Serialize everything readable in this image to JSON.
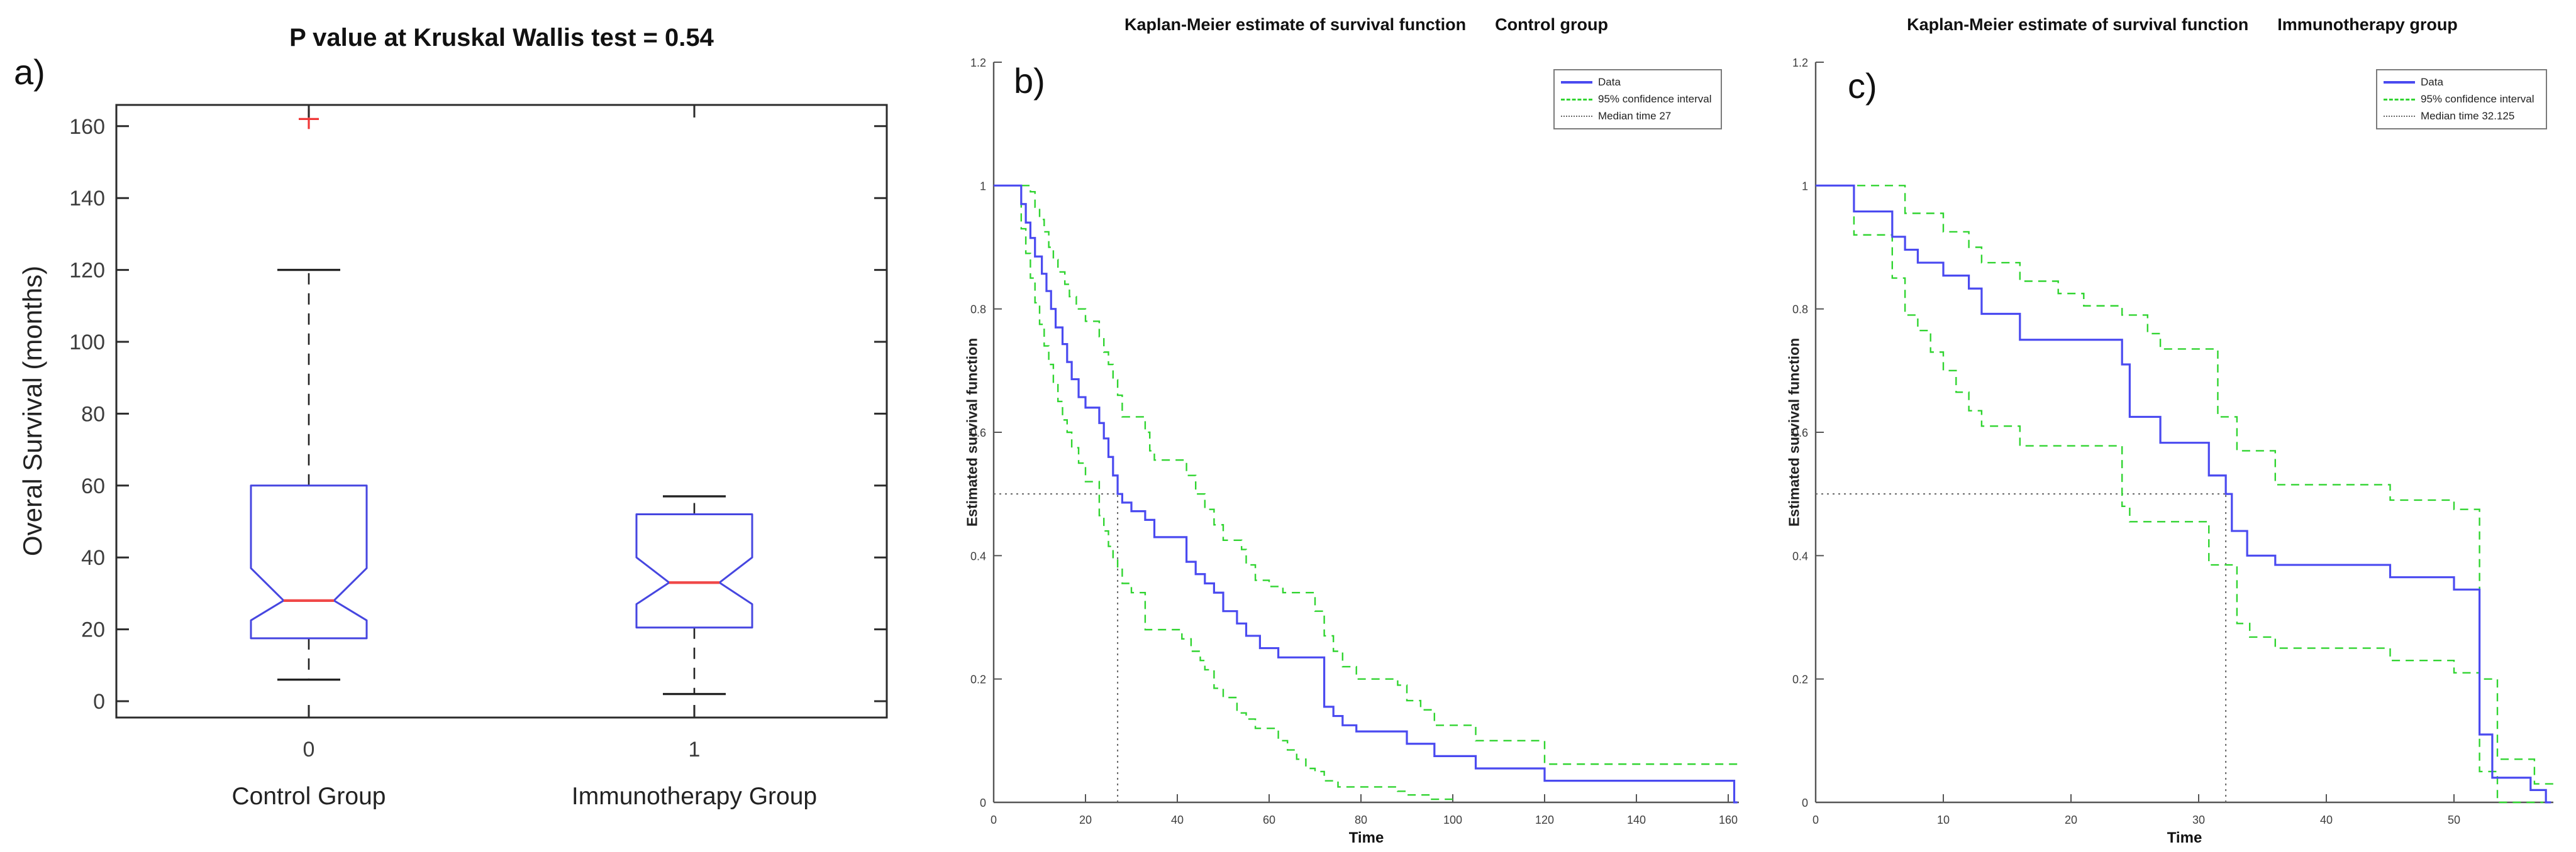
{
  "figure": {
    "background": "#ffffff"
  },
  "colors": {
    "data_line": "#4a4af0",
    "ci_line": "#30d430",
    "box_edge": "#4646e0",
    "box_median": "#f04848",
    "outlier": "#f03838",
    "whisker": "#222222",
    "axis_a": "#2b2b2b",
    "axis_km": "#555555",
    "tick_text": "#3d3d3d",
    "median_ref": "#666666"
  },
  "panels": {
    "a": {
      "label": "a)",
      "title": "P value at Kruskal Wallis test = 0.54",
      "ylabel": "Overal Survival (months)"
    },
    "b": {
      "label": "b)",
      "title_main": "Kaplan-Meier estimate of survival function",
      "title_group": "Control group",
      "xlabel": "Time",
      "ylabel": "Estimated survival function",
      "legend": [
        "Data",
        "95% confidence interval",
        "Median time 27"
      ]
    },
    "c": {
      "label": "c)",
      "title_main": "Kaplan-Meier estimate of survival function",
      "title_group": "Immunotherapy group",
      "xlabel": "Time",
      "ylabel": "Estimated survival function",
      "legend": [
        "Data",
        "95% confidence interval",
        "Median time 32.125"
      ]
    }
  },
  "chart_data": [
    {
      "type": "boxplot",
      "title": "P value at Kruskal Wallis test = 0.54",
      "ylabel": "Overal Survival (months)",
      "xlabel": "",
      "ylim": [
        -5,
        166
      ],
      "yticks": [
        0,
        20,
        40,
        60,
        80,
        100,
        120,
        140,
        160
      ],
      "notched": true,
      "groups": [
        {
          "tick": "0",
          "label": "Control Group",
          "whisker_low": 6,
          "q1": 17.5,
          "median": 28,
          "q3": 60,
          "whisker_high": 120,
          "notch_low": 22.5,
          "notch_high": 37,
          "outliers": [
            162
          ]
        },
        {
          "tick": "1",
          "label": "Immunotherapy Group",
          "whisker_low": 2,
          "q1": 20.5,
          "median": 33,
          "q3": 52,
          "whisker_high": 57,
          "notch_low": 27,
          "notch_high": 40,
          "outliers": []
        }
      ]
    },
    {
      "type": "line",
      "subtype": "kaplan-meier-step",
      "title": "Kaplan-Meier estimate of survival function",
      "group": "Control group",
      "xlabel": "Time",
      "ylabel": "Estimated survival function",
      "xlim": [
        0,
        163
      ],
      "ylim": [
        0,
        1.2
      ],
      "xticks": [
        0,
        20,
        40,
        60,
        80,
        100,
        120,
        140,
        160
      ],
      "yticks": [
        0,
        0.2,
        0.4,
        0.6,
        0.8,
        1,
        1.2
      ],
      "median_time": 27,
      "median_survival_level": 0.5,
      "legend": [
        "Data",
        "95% confidence interval",
        "Median time 27"
      ],
      "grid": false,
      "legend_position": "top-right",
      "series": [
        {
          "name": "Data",
          "style": "solid",
          "color": "#4a4af0",
          "steps": [
            [
              0,
              1
            ],
            [
              6,
              0.97
            ],
            [
              7,
              0.94
            ],
            [
              8,
              0.915
            ],
            [
              9,
              0.885
            ],
            [
              10.5,
              0.857
            ],
            [
              11.5,
              0.829
            ],
            [
              12.5,
              0.8
            ],
            [
              13.5,
              0.77
            ],
            [
              15,
              0.743
            ],
            [
              16,
              0.714
            ],
            [
              17,
              0.686
            ],
            [
              18.5,
              0.657
            ],
            [
              20,
              0.64
            ],
            [
              23,
              0.615
            ],
            [
              24,
              0.59
            ],
            [
              25,
              0.56
            ],
            [
              26,
              0.53
            ],
            [
              27,
              0.5
            ],
            [
              28,
              0.486
            ],
            [
              30,
              0.472
            ],
            [
              33,
              0.458
            ],
            [
              35,
              0.43
            ],
            [
              42,
              0.39
            ],
            [
              44,
              0.37
            ],
            [
              46,
              0.355
            ],
            [
              48,
              0.34
            ],
            [
              50,
              0.31
            ],
            [
              53,
              0.29
            ],
            [
              55,
              0.27
            ],
            [
              58,
              0.25
            ],
            [
              62,
              0.235
            ],
            [
              72,
              0.155
            ],
            [
              74,
              0.14
            ],
            [
              76,
              0.125
            ],
            [
              79,
              0.115
            ],
            [
              90,
              0.095
            ],
            [
              96,
              0.075
            ],
            [
              105,
              0.055
            ],
            [
              120,
              0.035
            ],
            [
              161.3,
              0
            ],
            [
              162,
              0
            ]
          ]
        },
        {
          "name": "95% CI upper",
          "style": "dashed",
          "color": "#30d430",
          "steps": [
            [
              0,
              1
            ],
            [
              8,
              0.99
            ],
            [
              9,
              0.965
            ],
            [
              10,
              0.945
            ],
            [
              11,
              0.925
            ],
            [
              12,
              0.9
            ],
            [
              13,
              0.88
            ],
            [
              14,
              0.86
            ],
            [
              15.5,
              0.84
            ],
            [
              16.5,
              0.82
            ],
            [
              18,
              0.8
            ],
            [
              20,
              0.78
            ],
            [
              23,
              0.755
            ],
            [
              24,
              0.73
            ],
            [
              25,
              0.71
            ],
            [
              26,
              0.685
            ],
            [
              27,
              0.66
            ],
            [
              28,
              0.625
            ],
            [
              33,
              0.6
            ],
            [
              34,
              0.57
            ],
            [
              35,
              0.555
            ],
            [
              42,
              0.53
            ],
            [
              44,
              0.5
            ],
            [
              46,
              0.475
            ],
            [
              48,
              0.45
            ],
            [
              50,
              0.425
            ],
            [
              54,
              0.41
            ],
            [
              55,
              0.385
            ],
            [
              57,
              0.36
            ],
            [
              60,
              0.35
            ],
            [
              63,
              0.34
            ],
            [
              70,
              0.31
            ],
            [
              72,
              0.27
            ],
            [
              74,
              0.245
            ],
            [
              76,
              0.22
            ],
            [
              79,
              0.2
            ],
            [
              88,
              0.19
            ],
            [
              90,
              0.165
            ],
            [
              93,
              0.15
            ],
            [
              96,
              0.125
            ],
            [
              105,
              0.1
            ],
            [
              120,
              0.062
            ],
            [
              162.5,
              0.062
            ]
          ]
        },
        {
          "name": "95% CI lower",
          "style": "dashed",
          "color": "#30d430",
          "steps": [
            [
              0,
              1
            ],
            [
              6,
              0.93
            ],
            [
              7,
              0.89
            ],
            [
              8,
              0.85
            ],
            [
              9,
              0.81
            ],
            [
              10,
              0.775
            ],
            [
              11,
              0.74
            ],
            [
              12,
              0.71
            ],
            [
              13,
              0.68
            ],
            [
              14,
              0.65
            ],
            [
              15,
              0.62
            ],
            [
              16,
              0.6
            ],
            [
              17,
              0.575
            ],
            [
              18.5,
              0.55
            ],
            [
              20,
              0.52
            ],
            [
              23,
              0.465
            ],
            [
              24,
              0.44
            ],
            [
              25,
              0.415
            ],
            [
              26,
              0.395
            ],
            [
              27,
              0.38
            ],
            [
              28,
              0.355
            ],
            [
              30,
              0.34
            ],
            [
              33,
              0.28
            ],
            [
              41,
              0.265
            ],
            [
              43,
              0.245
            ],
            [
              45,
              0.23
            ],
            [
              46,
              0.215
            ],
            [
              48,
              0.185
            ],
            [
              50,
              0.17
            ],
            [
              53,
              0.145
            ],
            [
              55,
              0.135
            ],
            [
              57,
              0.12
            ],
            [
              62,
              0.1
            ],
            [
              64,
              0.085
            ],
            [
              66,
              0.07
            ],
            [
              68,
              0.055
            ],
            [
              70,
              0.05
            ],
            [
              72,
              0.035
            ],
            [
              75,
              0.025
            ],
            [
              88,
              0.018
            ],
            [
              90,
              0.012
            ],
            [
              95,
              0.005
            ],
            [
              100,
              0.005
            ]
          ]
        }
      ]
    },
    {
      "type": "line",
      "subtype": "kaplan-meier-step",
      "title": "Kaplan-Meier estimate of survival function",
      "group": "Immunotherapy group",
      "xlabel": "Time",
      "ylabel": "Estimated survival function",
      "xlim": [
        0,
        58
      ],
      "ylim": [
        0,
        1.2
      ],
      "xticks": [
        0,
        10,
        20,
        30,
        40,
        50
      ],
      "yticks": [
        0,
        0.2,
        0.4,
        0.6,
        0.8,
        1,
        1.2
      ],
      "median_time": 32.125,
      "median_survival_level": 0.5,
      "legend": [
        "Data",
        "95% confidence interval",
        "Median time 32.125"
      ],
      "grid": false,
      "legend_position": "top-right",
      "series": [
        {
          "name": "Data",
          "style": "solid",
          "color": "#4a4af0",
          "steps": [
            [
              0,
              1
            ],
            [
              3,
              0.958
            ],
            [
              6,
              0.917
            ],
            [
              7,
              0.896
            ],
            [
              8,
              0.875
            ],
            [
              10,
              0.854
            ],
            [
              12,
              0.833
            ],
            [
              13,
              0.792
            ],
            [
              16,
              0.75
            ],
            [
              24,
              0.71
            ],
            [
              24.6,
              0.625
            ],
            [
              27,
              0.583
            ],
            [
              30.8,
              0.53
            ],
            [
              32.125,
              0.5
            ],
            [
              32.6,
              0.44
            ],
            [
              33.8,
              0.4
            ],
            [
              36,
              0.385
            ],
            [
              45,
              0.365
            ],
            [
              50,
              0.345
            ],
            [
              52,
              0.11
            ],
            [
              53,
              0.04
            ],
            [
              56,
              0.02
            ],
            [
              57.2,
              0
            ],
            [
              57.6,
              0
            ]
          ]
        },
        {
          "name": "95% CI upper",
          "style": "dashed",
          "color": "#30d430",
          "steps": [
            [
              0,
              1
            ],
            [
              7,
              0.955
            ],
            [
              10,
              0.925
            ],
            [
              12,
              0.9
            ],
            [
              13,
              0.875
            ],
            [
              16,
              0.845
            ],
            [
              19,
              0.825
            ],
            [
              21,
              0.805
            ],
            [
              24,
              0.79
            ],
            [
              26,
              0.76
            ],
            [
              27,
              0.735
            ],
            [
              31.5,
              0.625
            ],
            [
              33,
              0.57
            ],
            [
              36,
              0.515
            ],
            [
              45,
              0.49
            ],
            [
              50,
              0.475
            ],
            [
              52,
              0.2
            ],
            [
              53.4,
              0.07
            ],
            [
              56.3,
              0.03
            ],
            [
              57.8,
              0.03
            ]
          ]
        },
        {
          "name": "95% CI lower",
          "style": "dashed",
          "color": "#30d430",
          "steps": [
            [
              0,
              1
            ],
            [
              3,
              0.92
            ],
            [
              6,
              0.85
            ],
            [
              7,
              0.79
            ],
            [
              8,
              0.765
            ],
            [
              9,
              0.73
            ],
            [
              10,
              0.7
            ],
            [
              11,
              0.665
            ],
            [
              12,
              0.635
            ],
            [
              13,
              0.61
            ],
            [
              16,
              0.578
            ],
            [
              24,
              0.48
            ],
            [
              24.6,
              0.455
            ],
            [
              30.8,
              0.385
            ],
            [
              33,
              0.29
            ],
            [
              34,
              0.268
            ],
            [
              36,
              0.25
            ],
            [
              45,
              0.23
            ],
            [
              50,
              0.21
            ],
            [
              52,
              0.05
            ],
            [
              53.4,
              0
            ],
            [
              57,
              0
            ]
          ]
        }
      ]
    }
  ]
}
